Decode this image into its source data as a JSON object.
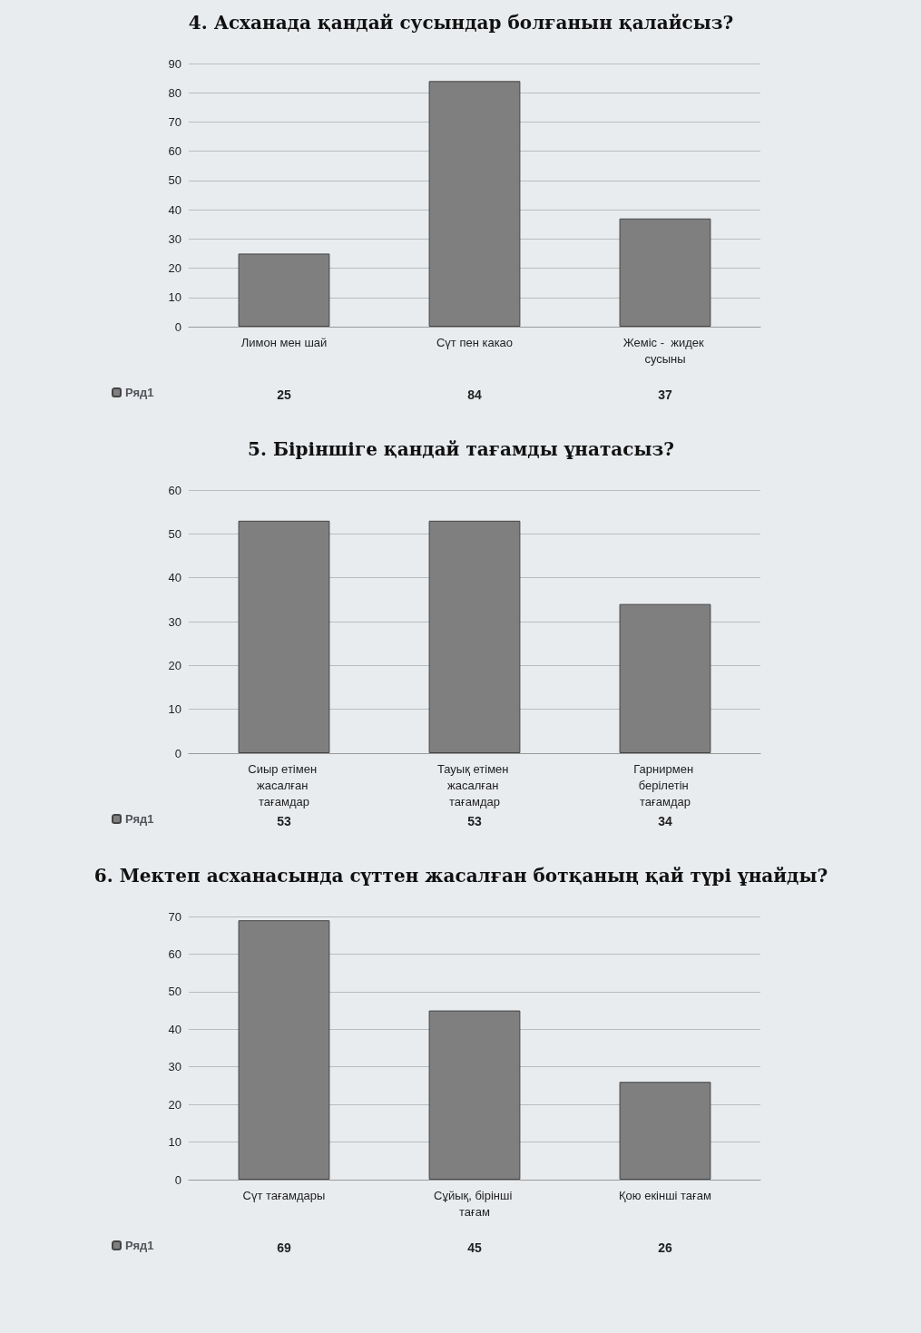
{
  "chart_data": [
    {
      "type": "bar",
      "title": "4. Асханада қандай сусындар болғанын қалайсыз?",
      "categories": [
        "Лимон мен шай",
        "Сүт пен какао",
        "Жеміс -  жидек сусыны"
      ],
      "series": [
        {
          "name": "Ряд1",
          "color": "#7f7f7f",
          "values": [
            25,
            84,
            37
          ]
        }
      ],
      "ylim": [
        0,
        90
      ],
      "yticks": [
        0,
        10,
        20,
        30,
        40,
        50,
        60,
        70,
        80,
        90
      ],
      "grid": "y",
      "data_labels": true,
      "legend": "bottom left"
    },
    {
      "type": "bar",
      "title": "5. Біріншіге қандай тағамды ұнатасыз?",
      "categories": [
        "Сиыр етімен жасалған тағамдар",
        "Тауық етімен жасалған тағамдар",
        "Гарнирмен берілетін тағамдар"
      ],
      "series": [
        {
          "name": "Ряд1",
          "color": "#7f7f7f",
          "values": [
            53,
            53,
            34
          ]
        }
      ],
      "ylim": [
        0,
        60
      ],
      "yticks": [
        0,
        10,
        20,
        30,
        40,
        50,
        60
      ],
      "grid": "y",
      "data_labels": true,
      "legend": "bottom left"
    },
    {
      "type": "bar",
      "title": "6. Мектеп асханасында сүттен жасалған ботқаның қай түрі ұнайды?",
      "categories": [
        "Сүт тағамдары",
        "Сұйық, бірінші тағам",
        "Қою екінші тағам"
      ],
      "series": [
        {
          "name": "Ряд1",
          "color": "#7f7f7f",
          "values": [
            69,
            45,
            26
          ]
        }
      ],
      "ylim": [
        0,
        70
      ],
      "yticks": [
        0,
        10,
        20,
        30,
        40,
        50,
        60,
        70
      ],
      "grid": "y",
      "data_labels": true,
      "legend": "bottom left"
    }
  ]
}
